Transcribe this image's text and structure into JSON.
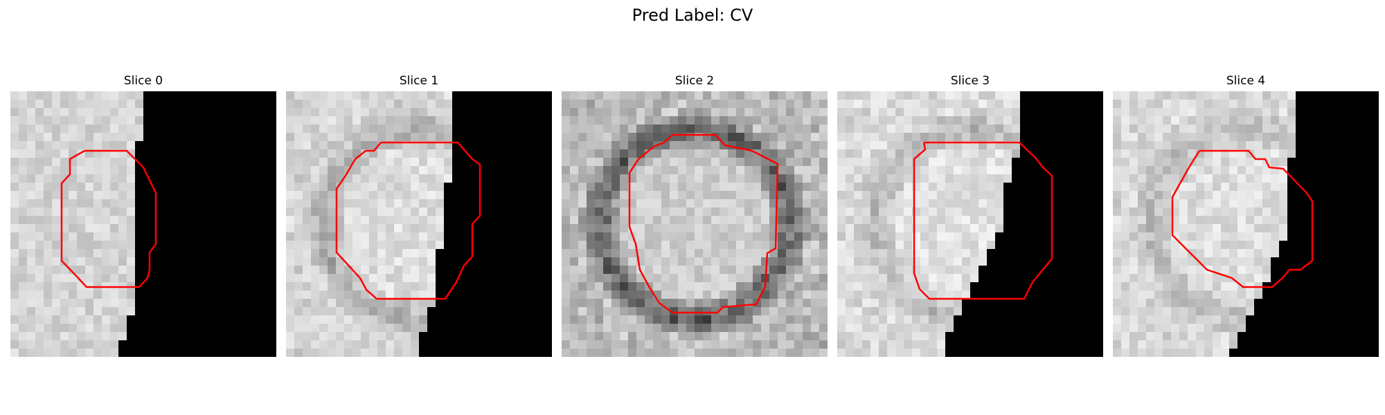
{
  "figure": {
    "title": "Pred Label: CV"
  },
  "slices": [
    {
      "title": "Slice 0",
      "seed": 11,
      "base": 212,
      "ring": 0.0,
      "dark_from_col": 16
    },
    {
      "title": "Slice 1",
      "seed": 23,
      "base": 222,
      "ring": 0.45,
      "dark_from_col": 20
    },
    {
      "title": "Slice 2",
      "seed": 37,
      "base": 205,
      "ring": 1.0,
      "dark_from_col": 99
    },
    {
      "title": "Slice 3",
      "seed": 51,
      "base": 225,
      "ring": 0.35,
      "dark_from_col": 19
    },
    {
      "title": "Slice 4",
      "seed": 67,
      "base": 222,
      "ring": 0.3,
      "dark_from_col": 20
    }
  ],
  "colors": {
    "contour": "#ff0000",
    "background_dark": "#000000"
  }
}
